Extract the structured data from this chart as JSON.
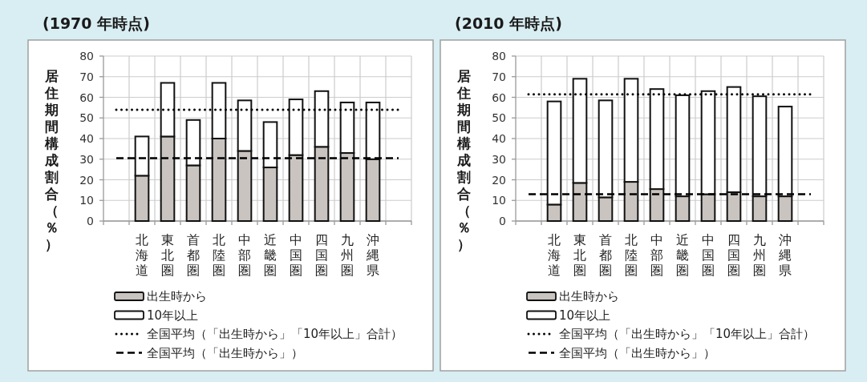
{
  "chart_data": [
    {
      "type": "bar",
      "title": "(1970 年時点)",
      "ylabel": "居住期間構成割合（％）",
      "categories": [
        null,
        "北海道",
        "東北圏",
        "首都圏",
        "北陸圏",
        "中部圏",
        "近畿圏",
        "中国圏",
        "四国圏",
        "九州圏",
        "沖縄県",
        null
      ],
      "stacked": true,
      "series": [
        {
          "name": "出生時から",
          "color": "#c9c4c0",
          "values": [
            null,
            22,
            41,
            27,
            40,
            34,
            26,
            32,
            36,
            33,
            30,
            null
          ]
        },
        {
          "name": "10年以上",
          "color": "#ffffff",
          "values": [
            null,
            19,
            26,
            22,
            27,
            24.5,
            22,
            27,
            27,
            24.5,
            27.5,
            null
          ]
        }
      ],
      "ylim": [
        0,
        80
      ],
      "yticks": [
        0,
        10,
        20,
        30,
        40,
        50,
        60,
        70,
        80
      ],
      "grid": true,
      "legend": "bottom",
      "ref_lines": [
        {
          "axis": "y",
          "value": 54,
          "label": "全国平均（「出生時から」「10年以上」合計）",
          "color": "#000000",
          "line_style": "dotted"
        },
        {
          "axis": "y",
          "value": 30.5,
          "label": "全国平均（「出生時から」）",
          "color": "#000000",
          "line_style": "dashed"
        }
      ]
    },
    {
      "type": "bar",
      "title": "(2010 年時点)",
      "ylabel": "居住期間構成割合（％）",
      "categories": [
        null,
        "北海道",
        "東北圏",
        "首都圏",
        "北陸圏",
        "中部圏",
        "近畿圏",
        "中国圏",
        "四国圏",
        "九州圏",
        "沖縄県",
        null
      ],
      "stacked": true,
      "series": [
        {
          "name": "出生時から",
          "color": "#c9c4c0",
          "values": [
            null,
            8,
            18.5,
            11.5,
            19,
            15.5,
            12,
            13,
            14,
            12,
            12,
            null
          ]
        },
        {
          "name": "10年以上",
          "color": "#ffffff",
          "values": [
            null,
            50,
            50.5,
            47,
            50,
            48.5,
            49,
            50,
            51,
            48.5,
            43.5,
            null
          ]
        }
      ],
      "ylim": [
        0,
        80
      ],
      "yticks": [
        0,
        10,
        20,
        30,
        40,
        50,
        60,
        70,
        80
      ],
      "grid": true,
      "legend": "bottom",
      "ref_lines": [
        {
          "axis": "y",
          "value": 61.5,
          "label": "全国平均（「出生時から」「10年以上」合計）",
          "color": "#000000",
          "line_style": "dotted"
        },
        {
          "axis": "y",
          "value": 13,
          "label": "全国平均（「出生時から」）",
          "color": "#000000",
          "line_style": "dashed"
        }
      ]
    }
  ]
}
